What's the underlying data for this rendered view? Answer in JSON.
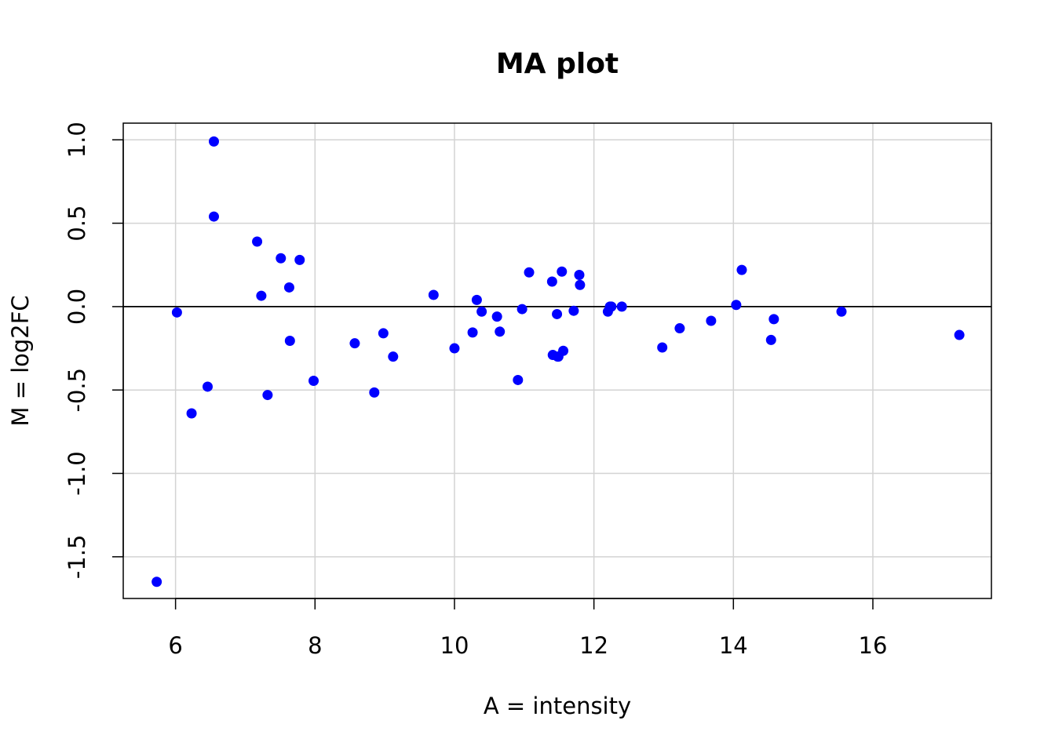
{
  "chart_data": {
    "type": "scatter",
    "title": "MA plot",
    "xlabel": "A = intensity",
    "ylabel": "M = log2FC",
    "xlim": [
      5.25,
      17.7
    ],
    "ylim": [
      -1.75,
      1.1
    ],
    "x_ticks": [
      6,
      8,
      10,
      12,
      14,
      16
    ],
    "x_tick_labels": [
      "6",
      "8",
      "10",
      "12",
      "14",
      "16"
    ],
    "y_ticks": [
      -1.5,
      -1.0,
      -0.5,
      0.0,
      0.5,
      1.0
    ],
    "y_tick_labels": [
      "-1.5",
      "-1.0",
      "-0.5",
      "0.0",
      "0.5",
      "1.0"
    ],
    "grid": true,
    "reference_line_y": 0,
    "point_color": "#0000ff",
    "grid_color": "#d3d3d3",
    "series": [
      {
        "x": [
          5.73,
          6.02,
          6.23,
          6.46,
          6.55,
          6.55,
          7.17,
          7.23,
          7.32,
          7.51,
          7.63,
          7.64,
          7.78,
          7.98,
          8.57,
          8.85,
          8.98,
          9.12,
          9.7,
          10.0,
          10.26,
          10.32,
          10.39,
          10.61,
          10.65,
          10.91,
          10.97,
          11.07,
          11.4,
          11.41,
          11.47,
          11.48,
          11.49,
          11.54,
          11.56,
          11.71,
          11.79,
          11.8,
          12.2,
          12.23,
          12.25,
          12.4,
          12.98,
          13.23,
          13.68,
          14.04,
          14.12,
          14.54,
          14.58,
          15.55,
          17.24
        ],
        "y": [
          -1.65,
          -0.035,
          -0.64,
          -0.48,
          0.54,
          0.99,
          0.39,
          0.065,
          -0.53,
          0.29,
          0.115,
          -0.205,
          0.28,
          -0.445,
          -0.22,
          -0.515,
          -0.16,
          -0.3,
          0.07,
          -0.25,
          -0.155,
          0.04,
          -0.03,
          -0.06,
          -0.15,
          -0.44,
          -0.015,
          0.205,
          0.15,
          -0.29,
          -0.045,
          -0.3,
          -0.3,
          0.21,
          -0.265,
          -0.025,
          0.19,
          0.13,
          -0.03,
          0.0,
          0.0,
          0.0,
          -0.245,
          -0.13,
          -0.085,
          0.01,
          0.22,
          -0.2,
          -0.075,
          -0.03,
          -0.17
        ]
      }
    ]
  }
}
